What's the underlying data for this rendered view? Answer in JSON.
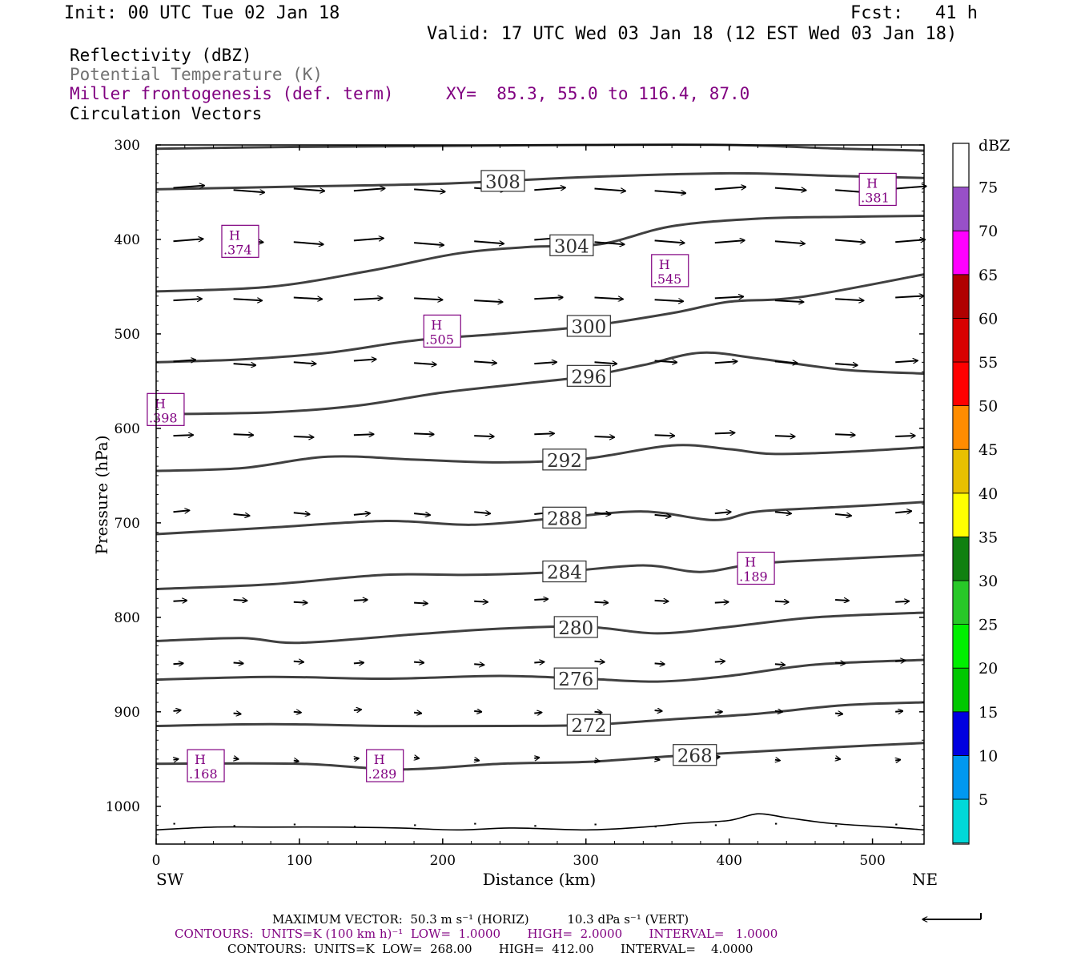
{
  "header": {
    "init": "Init: 00 UTC Tue 02 Jan 18",
    "fcst": "Fcst:   41 h",
    "valid": "Valid: 17 UTC Wed 03 Jan 18 (12 EST Wed 03 Jan 18)"
  },
  "fields": {
    "reflectivity": "Reflectivity (dBZ)",
    "theta": "Potential Temperature (K)",
    "frontogenesis": "Miller frontogenesis (def. term)",
    "xy": "XY=  85.3, 55.0 to 116.4, 87.0",
    "vectors": "Circulation Vectors"
  },
  "colors": {
    "theta_contour": "#404040",
    "frontogenesis": "#800080",
    "vector": "#000000"
  },
  "chart_data": {
    "type": "cross-section",
    "xlabel": "Distance (km)",
    "ylabel": "Pressure (hPa)",
    "xlim": [
      0,
      536
    ],
    "ylim": [
      1040,
      300
    ],
    "x_ticks": [
      0,
      100,
      200,
      300,
      400,
      500
    ],
    "y_ticks": [
      300,
      400,
      500,
      600,
      700,
      800,
      900,
      1000
    ],
    "left_end_label": "SW",
    "right_end_label": "NE",
    "theta_contours": [
      {
        "label": "308",
        "label_x": 242,
        "points": [
          [
            0,
            347
          ],
          [
            100,
            344
          ],
          [
            200,
            341
          ],
          [
            300,
            334
          ],
          [
            400,
            330
          ],
          [
            480,
            333
          ],
          [
            536,
            335
          ]
        ]
      },
      {
        "label": "304",
        "label_x": 290,
        "points": [
          [
            0,
            455
          ],
          [
            80,
            450
          ],
          [
            150,
            433
          ],
          [
            210,
            415
          ],
          [
            260,
            408
          ],
          [
            310,
            405
          ],
          [
            360,
            386
          ],
          [
            420,
            378
          ],
          [
            480,
            376
          ],
          [
            536,
            375
          ]
        ]
      },
      {
        "label": "300",
        "label_x": 302,
        "points": [
          [
            0,
            530
          ],
          [
            60,
            527
          ],
          [
            120,
            520
          ],
          [
            180,
            507
          ],
          [
            240,
            500
          ],
          [
            300,
            492
          ],
          [
            360,
            478
          ],
          [
            400,
            466
          ],
          [
            450,
            461
          ],
          [
            536,
            437
          ]
        ]
      },
      {
        "label": "296",
        "label_x": 302,
        "points": [
          [
            0,
            585
          ],
          [
            80,
            583
          ],
          [
            140,
            576
          ],
          [
            200,
            562
          ],
          [
            260,
            552
          ],
          [
            300,
            545
          ],
          [
            340,
            533
          ],
          [
            380,
            520
          ],
          [
            420,
            526
          ],
          [
            480,
            538
          ],
          [
            536,
            542
          ]
        ]
      },
      {
        "label": "292",
        "label_x": 285,
        "points": [
          [
            0,
            645
          ],
          [
            60,
            642
          ],
          [
            120,
            630
          ],
          [
            180,
            633
          ],
          [
            240,
            636
          ],
          [
            300,
            632
          ],
          [
            360,
            618
          ],
          [
            400,
            622
          ],
          [
            430,
            627
          ],
          [
            480,
            625
          ],
          [
            536,
            620
          ]
        ]
      },
      {
        "label": "288",
        "label_x": 285,
        "points": [
          [
            0,
            712
          ],
          [
            80,
            705
          ],
          [
            160,
            698
          ],
          [
            220,
            702
          ],
          [
            280,
            695
          ],
          [
            340,
            688
          ],
          [
            390,
            697
          ],
          [
            420,
            688
          ],
          [
            480,
            683
          ],
          [
            536,
            678
          ]
        ]
      },
      {
        "label": "284",
        "label_x": 285,
        "points": [
          [
            0,
            770
          ],
          [
            80,
            765
          ],
          [
            160,
            755
          ],
          [
            220,
            755
          ],
          [
            280,
            752
          ],
          [
            340,
            745
          ],
          [
            380,
            752
          ],
          [
            420,
            743
          ],
          [
            480,
            738
          ],
          [
            536,
            734
          ]
        ]
      },
      {
        "label": "280",
        "label_x": 293,
        "points": [
          [
            0,
            825
          ],
          [
            60,
            822
          ],
          [
            100,
            827
          ],
          [
            180,
            818
          ],
          [
            240,
            812
          ],
          [
            300,
            810
          ],
          [
            350,
            817
          ],
          [
            400,
            810
          ],
          [
            460,
            800
          ],
          [
            536,
            795
          ]
        ]
      },
      {
        "label": "276",
        "label_x": 293,
        "points": [
          [
            0,
            866
          ],
          [
            80,
            863
          ],
          [
            160,
            865
          ],
          [
            240,
            862
          ],
          [
            300,
            865
          ],
          [
            350,
            868
          ],
          [
            400,
            862
          ],
          [
            460,
            850
          ],
          [
            536,
            845
          ]
        ]
      },
      {
        "label": "272",
        "label_x": 302,
        "points": [
          [
            0,
            915
          ],
          [
            80,
            913
          ],
          [
            160,
            915
          ],
          [
            240,
            915
          ],
          [
            300,
            914
          ],
          [
            360,
            908
          ],
          [
            420,
            902
          ],
          [
            480,
            893
          ],
          [
            536,
            890
          ]
        ]
      },
      {
        "label": "268",
        "label_x": 376,
        "points": [
          [
            0,
            955
          ],
          [
            100,
            955
          ],
          [
            170,
            961
          ],
          [
            240,
            955
          ],
          [
            300,
            953
          ],
          [
            360,
            947
          ],
          [
            420,
            942
          ],
          [
            480,
            937
          ],
          [
            536,
            933
          ]
        ]
      }
    ],
    "surface_line": [
      [
        0,
        1025
      ],
      [
        40,
        1022
      ],
      [
        80,
        1022
      ],
      [
        130,
        1022
      ],
      [
        170,
        1023
      ],
      [
        210,
        1025
      ],
      [
        250,
        1023
      ],
      [
        300,
        1025
      ],
      [
        340,
        1022
      ],
      [
        370,
        1018
      ],
      [
        400,
        1015
      ],
      [
        420,
        1008
      ],
      [
        440,
        1012
      ],
      [
        470,
        1018
      ],
      [
        510,
        1022
      ],
      [
        536,
        1025
      ]
    ],
    "frontogenesis_maxima": [
      {
        "label": "H",
        "value": ".374",
        "x": 57,
        "p": 402
      },
      {
        "label": "H",
        "value": ".381",
        "x": 502,
        "p": 347
      },
      {
        "label": "H",
        "value": ".545",
        "x": 357,
        "p": 433
      },
      {
        "label": "H",
        "value": ".505",
        "x": 198,
        "p": 497
      },
      {
        "label": "H",
        "value": ".398",
        "x": 5,
        "p": 580
      },
      {
        "label": "H",
        "value": ".189",
        "x": 417,
        "p": 748
      },
      {
        "label": "H",
        "value": ".168",
        "x": 33,
        "p": 957
      },
      {
        "label": "H",
        "value": ".289",
        "x": 158,
        "p": 957
      }
    ],
    "vector_levels": [
      {
        "p": 347,
        "dx": 25,
        "rise": 3
      },
      {
        "p": 402,
        "dx": 24,
        "rise": 3
      },
      {
        "p": 463,
        "dx": 23,
        "rise": 2
      },
      {
        "p": 530,
        "dx": 18,
        "rise": 2
      },
      {
        "p": 607,
        "dx": 16,
        "rise": 1
      },
      {
        "p": 690,
        "dx": 13,
        "rise": 2
      },
      {
        "p": 783,
        "dx": 11,
        "rise": 1
      },
      {
        "p": 848,
        "dx": 8,
        "rise": 1
      },
      {
        "p": 900,
        "dx": 6,
        "rise": 1
      },
      {
        "p": 950,
        "dx": 4,
        "rise": 1
      },
      {
        "p": 1020,
        "dx": 1.5,
        "rise": 0
      }
    ],
    "vector_x": [
      12,
      54,
      96,
      138,
      180,
      222,
      264,
      306,
      348,
      390,
      432,
      474,
      516
    ],
    "colorbar": {
      "title": "dBZ",
      "labels": [
        "5",
        "10",
        "15",
        "20",
        "25",
        "30",
        "35",
        "40",
        "45",
        "50",
        "55",
        "60",
        "65",
        "70",
        "75"
      ],
      "colors": [
        "#00d8d8",
        "#0098f0",
        "#0000e0",
        "#00c800",
        "#00f000",
        "#28c828",
        "#108010",
        "#ffff00",
        "#e8c000",
        "#ff8c00",
        "#ff0000",
        "#d80000",
        "#b00000",
        "#ff00ff",
        "#9850c8"
      ]
    }
  },
  "footer": {
    "max_vector": "MAXIMUM VECTOR:  50.3 m s⁻¹ (HORIZ)          10.3 dPa s⁻¹ (VERT)",
    "contours_fgen": "CONTOURS:  UNITS=K (100 km h)⁻¹  LOW=  1.0000       HIGH=  2.0000       INTERVAL=   1.0000",
    "contours_theta": "CONTOURS:  UNITS=K  LOW=  268.00       HIGH=  412.00       INTERVAL=    4.0000"
  }
}
